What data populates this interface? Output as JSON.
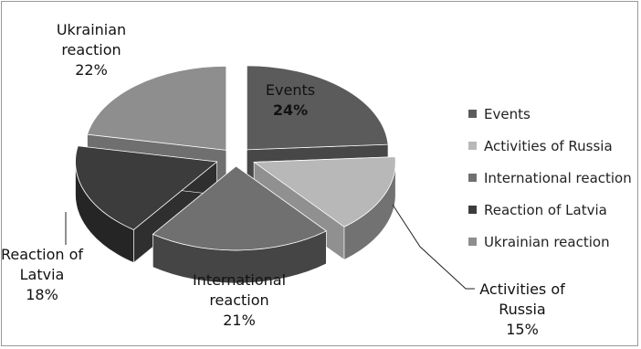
{
  "chart_data": {
    "type": "pie",
    "style": "3d-exploded",
    "categories": [
      "Events",
      "Activities of Russia",
      "International reaction",
      "Reaction of Latvia",
      "Ukrainian reaction"
    ],
    "values": [
      24,
      15,
      21,
      18,
      22
    ],
    "value_labels": [
      "24%",
      "15%",
      "21%",
      "18%",
      "22%"
    ],
    "colors": [
      "#5b5b5b",
      "#b8b8b8",
      "#707070",
      "#3c3c3c",
      "#8e8e8e"
    ],
    "legend_position": "right",
    "title": ""
  },
  "slice_labels": [
    {
      "lines": [
        "Events"
      ],
      "pct": "24%"
    },
    {
      "lines": [
        "Activities of",
        "Russia"
      ],
      "pct": "15%"
    },
    {
      "lines": [
        "International",
        "reaction"
      ],
      "pct": "21%"
    },
    {
      "lines": [
        "Reaction of",
        "Latvia"
      ],
      "pct": "18%"
    },
    {
      "lines": [
        "Ukrainian",
        "reaction"
      ],
      "pct": "22%"
    }
  ]
}
